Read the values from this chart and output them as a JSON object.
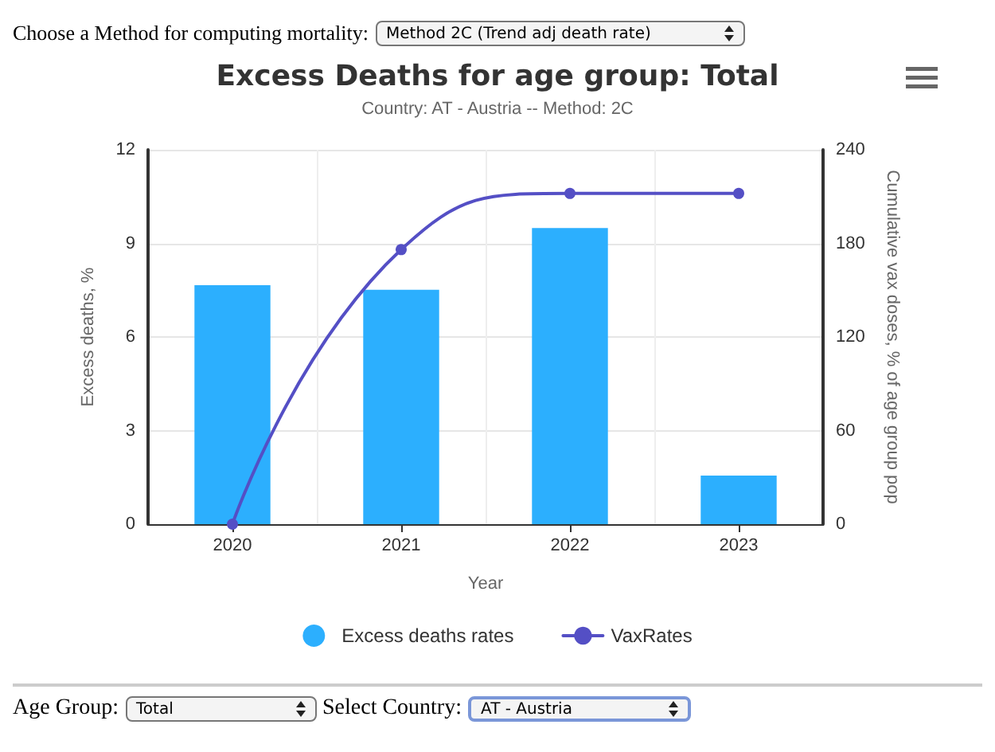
{
  "chart_data": {
    "type": "bar",
    "title": "Excess Deaths for age group: Total",
    "subtitle": "Country: AT - Austria -- Method: 2C",
    "xlabel": "Year",
    "ylabel": "Excess deaths, %",
    "y2label": "Cumulative vax doses, % of age group pop",
    "categories": [
      "2020",
      "2021",
      "2022",
      "2023"
    ],
    "series": [
      {
        "name": "Excess deaths rates",
        "color": "#2caffe",
        "values": [
          7.66,
          7.51,
          9.49,
          1.56
        ]
      },
      {
        "name": "VaxRates",
        "type": "line",
        "axis": "y2",
        "color": "#544fc5",
        "values": [
          0,
          176,
          212,
          212
        ]
      }
    ],
    "ylim": [
      0,
      12
    ],
    "yticks": [
      0,
      3,
      6,
      9,
      12
    ],
    "y2lim": [
      0,
      240
    ],
    "y2ticks": [
      0,
      60,
      120,
      180,
      240
    ],
    "grid": true,
    "legend": "bottom",
    "marker": "circle",
    "annotations": [
      "Choose a Method for computing mortality:",
      "Method 2C (Trend adj death rate)",
      "Age Group:",
      "Total",
      "Select Country:",
      "AT - Austria"
    ]
  }
}
